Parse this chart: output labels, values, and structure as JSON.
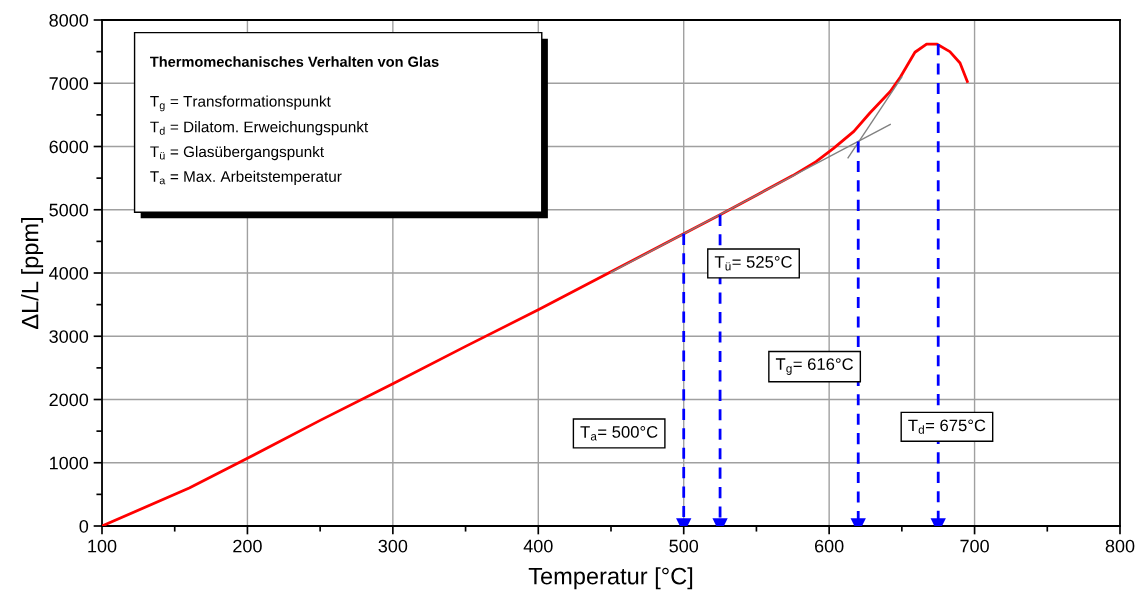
{
  "chart_data": {
    "type": "line",
    "title": "Thermomechanisches Verhalten von Glas",
    "xlabel": "Temperatur [°C]",
    "ylabel": "ΔL/L [ppm]",
    "series": [
      {
        "color": "#ff0000",
        "x": [
          100,
          160,
          200,
          250,
          300,
          350,
          400,
          450,
          500,
          525,
          550,
          575,
          591,
          603,
          617,
          628,
          642,
          649,
          659,
          667,
          674,
          683,
          690,
          695
        ],
        "values": [
          0,
          600,
          1070,
          1670,
          2250,
          2840,
          3420,
          4020,
          4620,
          4920,
          5230,
          5540,
          5760,
          5970,
          6240,
          6530,
          6870,
          7100,
          7490,
          7620,
          7620,
          7500,
          7320,
          7030
        ]
      },
      {
        "color": "#808080",
        "x": [
          450,
          642
        ],
        "values": [
          4010,
          6350
        ]
      },
      {
        "color": "#808080",
        "x": [
          613,
          650
        ],
        "values": [
          5820,
          7100
        ]
      },
      {
        "color": "#0000ff",
        "line_style": "dashed",
        "marker": "triangle",
        "x": [
          500,
          500
        ],
        "values": [
          4620,
          0
        ]
      },
      {
        "color": "#0000ff",
        "line_style": "dashed",
        "marker": "triangle",
        "x": [
          525,
          525
        ],
        "values": [
          4920,
          0
        ]
      },
      {
        "color": "#0000ff",
        "line_style": "dashed",
        "marker": "triangle",
        "x": [
          620,
          620
        ],
        "values": [
          6080,
          0
        ]
      },
      {
        "color": "#0000ff",
        "line_style": "dashed",
        "marker": "triangle",
        "x": [
          675,
          675
        ],
        "values": [
          7620,
          0
        ]
      }
    ],
    "annotations": [
      "T$_{g}$ = Transformationspunkt",
      "T$_{d}$ = Dilatom. Erweichungspunkt",
      "T$_{ü}$ = Glasübergangspunkt",
      "T$_{a}$ = Max. Arbeitstemperatur",
      "T$_{a}$= 500°C",
      "T$_{ü}$= 525°C",
      "T$_{g}$= 616°C",
      "T$_{d}$= 675°C"
    ],
    "xlim": [
      100,
      800
    ],
    "xticks": [
      100,
      200,
      300,
      400,
      500,
      600,
      700,
      800
    ],
    "ylim": [
      0,
      8000
    ],
    "yticks": [
      0,
      1000,
      2000,
      3000,
      4000,
      5000,
      6000,
      7000,
      8000
    ],
    "grid": true,
    "marker": "none",
    "line_style": "solid"
  }
}
